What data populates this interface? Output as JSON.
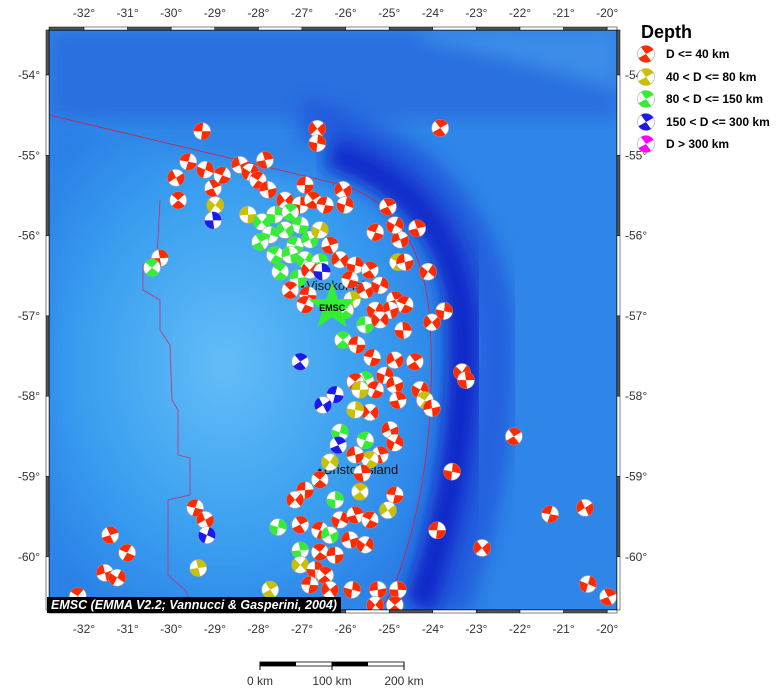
{
  "map": {
    "lon_range": [
      -32.8,
      -19.8
    ],
    "lat_range": [
      -60.7,
      -53.55
    ],
    "lon_ticks": [
      -32,
      -31,
      -30,
      -29,
      -28,
      -27,
      -26,
      -25,
      -24,
      -23,
      -22,
      -21,
      -20
    ],
    "lat_ticks": [
      -54,
      -55,
      -56,
      -57,
      -58,
      -59,
      -60
    ],
    "place_labels": [
      {
        "text": "Visokoi Island",
        "lon": -26.9,
        "lat": -56.68
      },
      {
        "text": "Bristol Island",
        "lon": -26.5,
        "lat": -58.97
      }
    ],
    "marker": {
      "label": "EMSC",
      "lon": -26.31,
      "lat": -56.89,
      "color": "#33ee33"
    },
    "depth_colors": {
      "r": "#ff2a00",
      "y": "#c8c000",
      "g": "#33ee33",
      "b": "#1a1aee",
      "m": "#ff00ff"
    },
    "events": [
      [
        -29.29,
        -54.7,
        "r"
      ],
      [
        -26.65,
        -54.67,
        "r"
      ],
      [
        -26.65,
        -54.85,
        "r"
      ],
      [
        -23.83,
        -54.66,
        "r"
      ],
      [
        -29.61,
        -55.08,
        "r"
      ],
      [
        -29.89,
        -55.28,
        "r"
      ],
      [
        -29.22,
        -55.18,
        "r"
      ],
      [
        -29.04,
        -55.41,
        "r"
      ],
      [
        -28.83,
        -55.25,
        "r"
      ],
      [
        -28.42,
        -55.12,
        "r"
      ],
      [
        -28.19,
        -55.21,
        "r"
      ],
      [
        -27.85,
        -55.06,
        "r"
      ],
      [
        -28.01,
        -55.31,
        "r"
      ],
      [
        -27.78,
        -55.43,
        "r"
      ],
      [
        -28.99,
        -55.62,
        "y"
      ],
      [
        -29.04,
        -55.81,
        "b"
      ],
      [
        -29.84,
        -55.56,
        "r"
      ],
      [
        -26.93,
        -55.37,
        "r"
      ],
      [
        -27.39,
        -55.56,
        "r"
      ],
      [
        -27.04,
        -55.62,
        "r"
      ],
      [
        -26.75,
        -55.56,
        "r"
      ],
      [
        -26.47,
        -55.62,
        "r"
      ],
      [
        -26.06,
        -55.43,
        "r"
      ],
      [
        -26.01,
        -55.62,
        "r"
      ],
      [
        -25.03,
        -55.64,
        "r"
      ],
      [
        -25.32,
        -55.96,
        "r"
      ],
      [
        -24.75,
        -56.05,
        "r"
      ],
      [
        -24.87,
        -55.87,
        "r"
      ],
      [
        -24.36,
        -55.91,
        "r"
      ],
      [
        -24.8,
        -56.33,
        "y"
      ],
      [
        -24.64,
        -56.33,
        "r"
      ],
      [
        -24.11,
        -56.45,
        "r"
      ],
      [
        -30.26,
        -56.28,
        "r"
      ],
      [
        -30.44,
        -56.4,
        "g"
      ],
      [
        -28.24,
        -55.74,
        "y"
      ],
      [
        -27.92,
        -55.83,
        "g"
      ],
      [
        -27.62,
        -55.74,
        "g"
      ],
      [
        -27.27,
        -55.71,
        "g"
      ],
      [
        -27.04,
        -55.87,
        "g"
      ],
      [
        -27.39,
        -55.93,
        "g"
      ],
      [
        -27.73,
        -55.99,
        "g"
      ],
      [
        -27.96,
        -56.08,
        "g"
      ],
      [
        -27.16,
        -56.12,
        "g"
      ],
      [
        -26.82,
        -56.05,
        "g"
      ],
      [
        -26.59,
        -55.93,
        "y"
      ],
      [
        -26.36,
        -56.12,
        "r"
      ],
      [
        -27.62,
        -56.24,
        "g"
      ],
      [
        -27.27,
        -56.24,
        "g"
      ],
      [
        -26.93,
        -56.3,
        "g"
      ],
      [
        -26.59,
        -56.33,
        "g"
      ],
      [
        -27.5,
        -56.45,
        "g"
      ],
      [
        -27.09,
        -56.53,
        "g"
      ],
      [
        -26.82,
        -56.43,
        "r"
      ],
      [
        -26.54,
        -56.45,
        "b"
      ],
      [
        -27.27,
        -56.68,
        "r"
      ],
      [
        -26.86,
        -56.74,
        "r"
      ],
      [
        -26.13,
        -56.3,
        "r"
      ],
      [
        -25.78,
        -56.37,
        "r"
      ],
      [
        -25.44,
        -56.43,
        "r"
      ],
      [
        -25.9,
        -56.55,
        "r"
      ],
      [
        -25.55,
        -56.68,
        "r"
      ],
      [
        -25.21,
        -56.62,
        "r"
      ],
      [
        -24.87,
        -56.8,
        "r"
      ],
      [
        -24.64,
        -56.86,
        "r"
      ],
      [
        -24.98,
        -56.93,
        "r"
      ],
      [
        -25.32,
        -56.93,
        "r"
      ],
      [
        -25.85,
        -56.8,
        "y"
      ],
      [
        -26.01,
        -56.93,
        "g"
      ],
      [
        -25.55,
        -57.11,
        "g"
      ],
      [
        -25.21,
        -57.05,
        "r"
      ],
      [
        -24.68,
        -57.18,
        "r"
      ],
      [
        -26.06,
        -57.3,
        "g"
      ],
      [
        -25.74,
        -57.36,
        "r"
      ],
      [
        -24.02,
        -57.08,
        "r"
      ],
      [
        -23.74,
        -56.94,
        "r"
      ],
      [
        -24.41,
        -57.57,
        "r"
      ],
      [
        -25.39,
        -57.52,
        "r"
      ],
      [
        -24.87,
        -57.55,
        "r"
      ],
      [
        -25.1,
        -57.74,
        "r"
      ],
      [
        -25.55,
        -57.8,
        "g"
      ],
      [
        -25.32,
        -57.92,
        "r"
      ],
      [
        -24.87,
        -57.86,
        "r"
      ],
      [
        -24.29,
        -57.92,
        "r"
      ],
      [
        -24.8,
        -58.05,
        "r"
      ],
      [
        -24.18,
        -58.05,
        "y"
      ],
      [
        -24.02,
        -58.15,
        "r"
      ],
      [
        -23.33,
        -57.7,
        "r"
      ],
      [
        -23.24,
        -57.8,
        "r"
      ],
      [
        -25.78,
        -57.82,
        "r"
      ],
      [
        -25.67,
        -57.92,
        "y"
      ],
      [
        -25.44,
        -58.2,
        "r"
      ],
      [
        -25.78,
        -58.17,
        "y"
      ],
      [
        -27.04,
        -57.57,
        "b"
      ],
      [
        -26.24,
        -57.98,
        "b"
      ],
      [
        -26.52,
        -58.11,
        "b"
      ],
      [
        -26.13,
        -58.45,
        "g"
      ],
      [
        -26.17,
        -58.61,
        "b"
      ],
      [
        -25.55,
        -58.55,
        "g"
      ],
      [
        -24.98,
        -58.42,
        "r"
      ],
      [
        -24.87,
        -58.58,
        "r"
      ],
      [
        -25.21,
        -58.73,
        "r"
      ],
      [
        -25.44,
        -58.79,
        "y"
      ],
      [
        -25.78,
        -58.73,
        "r"
      ],
      [
        -26.36,
        -58.82,
        "y"
      ],
      [
        -25.62,
        -58.96,
        "r"
      ],
      [
        -26.59,
        -59.04,
        "r"
      ],
      [
        -26.93,
        -59.17,
        "r"
      ],
      [
        -27.16,
        -59.29,
        "r"
      ],
      [
        -26.24,
        -59.29,
        "g"
      ],
      [
        -25.67,
        -59.19,
        "y"
      ],
      [
        -24.87,
        -59.23,
        "r"
      ],
      [
        -25.03,
        -59.42,
        "y"
      ],
      [
        -27.55,
        -59.63,
        "g"
      ],
      [
        -27.04,
        -59.6,
        "r"
      ],
      [
        -26.59,
        -59.67,
        "r"
      ],
      [
        -26.36,
        -59.73,
        "g"
      ],
      [
        -26.13,
        -59.54,
        "r"
      ],
      [
        -25.78,
        -59.48,
        "r"
      ],
      [
        -25.44,
        -59.54,
        "r"
      ],
      [
        -25.9,
        -59.79,
        "r"
      ],
      [
        -25.55,
        -59.85,
        "r"
      ],
      [
        -27.04,
        -59.92,
        "g"
      ],
      [
        -26.59,
        -59.94,
        "r"
      ],
      [
        -26.24,
        -59.98,
        "r"
      ],
      [
        -27.04,
        -60.1,
        "y"
      ],
      [
        -26.7,
        -60.16,
        "r"
      ],
      [
        -26.47,
        -60.23,
        "r"
      ],
      [
        -26.82,
        -60.35,
        "r"
      ],
      [
        -26.36,
        -60.41,
        "r"
      ],
      [
        -25.85,
        -60.41,
        "r"
      ],
      [
        -27.73,
        -60.41,
        "y"
      ],
      [
        -29.45,
        -59.39,
        "r"
      ],
      [
        -29.22,
        -59.54,
        "r"
      ],
      [
        -29.18,
        -59.73,
        "b"
      ],
      [
        -31.4,
        -59.73,
        "r"
      ],
      [
        -31.01,
        -59.95,
        "r"
      ],
      [
        -31.52,
        -60.2,
        "r"
      ],
      [
        -31.24,
        -60.26,
        "r"
      ],
      [
        -29.38,
        -60.14,
        "y"
      ],
      [
        -32.14,
        -60.49,
        "r"
      ],
      [
        -25.26,
        -60.41,
        "r"
      ],
      [
        -25.32,
        -60.6,
        "r"
      ],
      [
        -24.8,
        -60.41,
        "r"
      ],
      [
        -24.87,
        -60.6,
        "r"
      ],
      [
        -23.9,
        -59.67,
        "r"
      ],
      [
        -22.87,
        -59.89,
        "r"
      ],
      [
        -23.56,
        -58.94,
        "r"
      ],
      [
        -22.14,
        -58.5,
        "r"
      ],
      [
        -21.31,
        -59.47,
        "r"
      ],
      [
        -20.51,
        -59.39,
        "r"
      ],
      [
        -20.44,
        -60.34,
        "r"
      ],
      [
        -19.98,
        -60.5,
        "r"
      ],
      [
        -26.93,
        -56.86,
        "r"
      ]
    ]
  },
  "legend": {
    "title": "Depth",
    "items": [
      {
        "label": "D <= 40 km",
        "color": "#ff2a00"
      },
      {
        "label": "40 < D <= 80 km",
        "color": "#c8c000"
      },
      {
        "label": "80 < D <= 150 km",
        "color": "#33ee33"
      },
      {
        "label": "150 < D <= 300 km",
        "color": "#1a1aee"
      },
      {
        "label": "D > 300 km",
        "color": "#ff00ff"
      }
    ]
  },
  "credit": "EMSC (EMMA V2.2; Vannucci & Gasperini, 2004)",
  "scale_bar": {
    "labels": [
      "0 km",
      "100 km",
      "200 km"
    ]
  }
}
